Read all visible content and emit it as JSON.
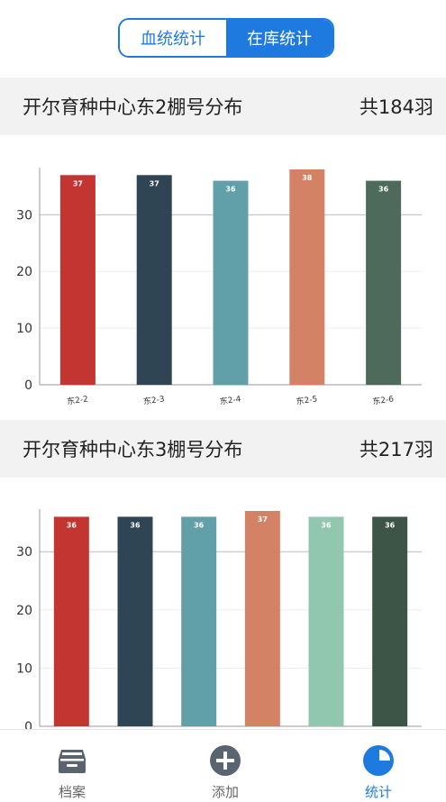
{
  "segmented": {
    "pedigree_label": "血统统计",
    "stock_label": "在库统计",
    "active": "stock"
  },
  "sections": [
    {
      "title": "开尔育种中心东2棚号分布",
      "total": "共184羽"
    },
    {
      "title": "开尔育种中心东3棚号分布",
      "total": "共217羽"
    }
  ],
  "chart_data": [
    {
      "type": "bar",
      "title": "",
      "categories": [
        "东2-2",
        "东2-3",
        "东2-4",
        "东2-5",
        "东2-6"
      ],
      "values": [
        37,
        37,
        36,
        38,
        36
      ],
      "value_labels": [
        "37",
        "37",
        "36",
        "38",
        "36"
      ],
      "colors": [
        "#c23531",
        "#2f4554",
        "#61a0a8",
        "#d48265",
        "#4e6a5a"
      ],
      "yticks": [
        "0",
        "10",
        "20",
        "30"
      ],
      "ylim": [
        0,
        38
      ],
      "grid": true,
      "xlabel": "",
      "ylabel": ""
    },
    {
      "type": "bar",
      "title": "",
      "categories": [
        "",
        "",
        "",
        "",
        "",
        ""
      ],
      "values": [
        36,
        36,
        36,
        37,
        36,
        36
      ],
      "value_labels": [
        "36",
        "36",
        "36",
        "37",
        "36",
        "36"
      ],
      "colors": [
        "#c23531",
        "#2f4554",
        "#61a0a8",
        "#d48265",
        "#91c7ae",
        "#3d5546"
      ],
      "yticks": [
        "0",
        "10",
        "20",
        "30"
      ],
      "ylim": [
        0,
        37
      ],
      "grid": true,
      "xlabel": "",
      "ylabel": ""
    }
  ],
  "tabs": [
    {
      "label": "档案",
      "icon": "archive-icon"
    },
    {
      "label": "添加",
      "icon": "add-icon"
    },
    {
      "label": "统计",
      "icon": "pie-chart-icon"
    }
  ],
  "colors": {
    "accent": "#1f7ae0",
    "icon_gray": "#5a6470"
  }
}
